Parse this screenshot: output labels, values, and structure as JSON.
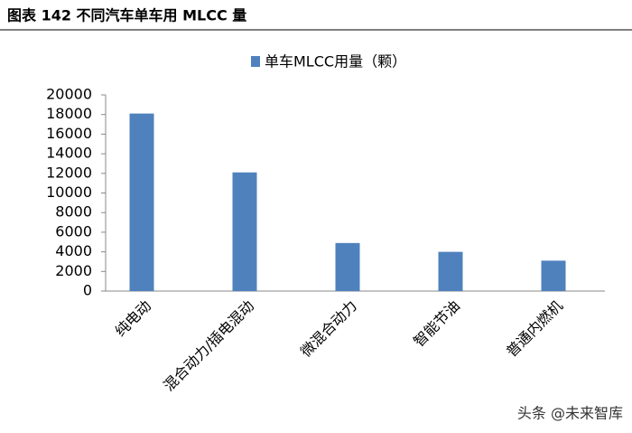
{
  "chart_data": {
    "type": "bar",
    "title": "图表 142 不同汽车单车用 MLCC 量",
    "categories": [
      "纯电动",
      "混合动力/插电混动",
      "微混合动力",
      "智能节油",
      "普通内燃机"
    ],
    "series": [
      {
        "name": "单车MLCC用量（颗）",
        "color": "#4f81bd",
        "values": [
          18100,
          12100,
          4900,
          4000,
          3100
        ]
      }
    ],
    "ylim": [
      0,
      20000
    ],
    "yticks": [
      0,
      2000,
      4000,
      6000,
      8000,
      10000,
      12000,
      14000,
      16000,
      18000,
      20000
    ],
    "watermark": "头条 @未来智库"
  }
}
